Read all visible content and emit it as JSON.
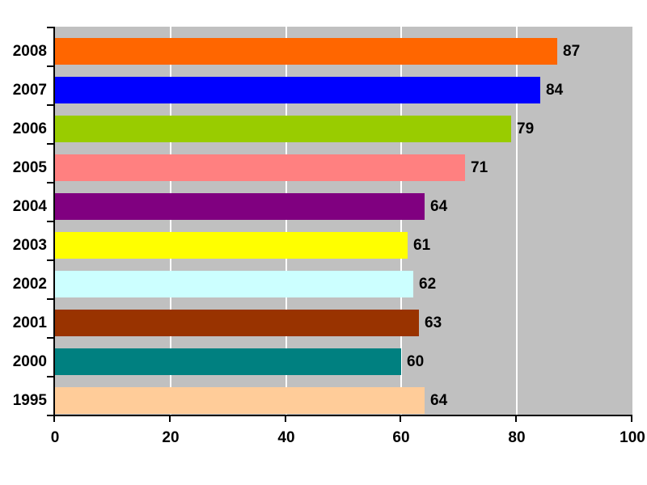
{
  "chart_data": {
    "type": "bar",
    "orientation": "horizontal",
    "title": "",
    "xlabel": "",
    "ylabel": "",
    "categories": [
      "2008",
      "2007",
      "2006",
      "2005",
      "2004",
      "2003",
      "2002",
      "2001",
      "2000",
      "1995"
    ],
    "values": [
      87,
      84,
      79,
      71,
      64,
      61,
      62,
      63,
      60,
      64
    ],
    "data_labels": [
      "87",
      "84",
      "79",
      "71",
      "64",
      "61",
      "62",
      "63",
      "60",
      "64"
    ],
    "bar_colors": [
      "#FF6600",
      "#0000FF",
      "#99CC00",
      "#FF8080",
      "#800080",
      "#FFFF00",
      "#CCFFFF",
      "#993300",
      "#008080",
      "#FFCC99"
    ],
    "xlim": [
      0,
      100
    ],
    "xticks": [
      "0",
      "20",
      "40",
      "60",
      "80",
      "100"
    ],
    "xtick_values": [
      0,
      20,
      40,
      60,
      80,
      100
    ],
    "grid": true,
    "legend": false,
    "plot_background_color": "#C0C0C0",
    "gridline_color": "#FFFFFF",
    "axis_color": "#000000",
    "outer_background_color": "#FFFFFF",
    "text_color": "#000000"
  }
}
